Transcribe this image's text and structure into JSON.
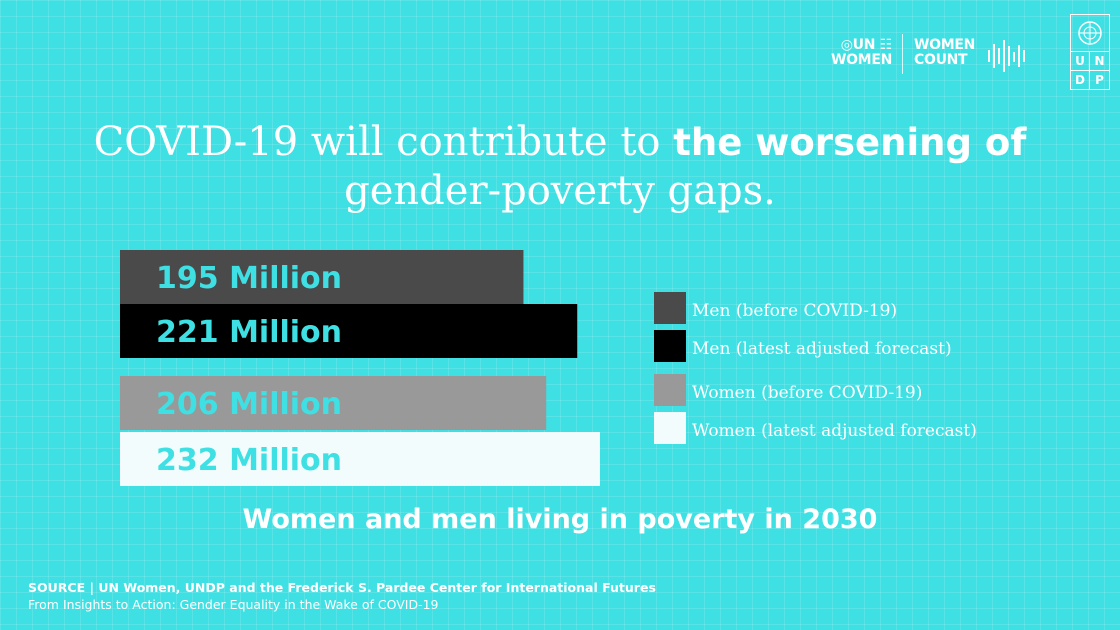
{
  "logos": {
    "un_women_line1": "UN",
    "un_women_line2": "WOMEN",
    "women_count_line1": "WOMEN",
    "women_count_line2": "COUNT",
    "undp_letters": [
      "U",
      "N",
      "D",
      "P"
    ]
  },
  "headline": {
    "part1": "COVID-19 will contribute to ",
    "bold": "the worsening of",
    "part2": "gender-poverty gaps."
  },
  "chart_data": {
    "type": "bar",
    "orientation": "horizontal",
    "unit": "Million",
    "title": "Women and men living in poverty in 2030",
    "bars": [
      {
        "series": "Men (before COVID-19)",
        "value": 195,
        "label": "195 Million",
        "color": "#4a4a4a",
        "text_color": "#3fe0e3"
      },
      {
        "series": "Men (latest adjusted forecast)",
        "value": 221,
        "label": "221 Million",
        "color": "#000000",
        "text_color": "#3fe0e3"
      },
      {
        "series": "Women (before COVID-19)",
        "value": 206,
        "label": "206 Million",
        "color": "#999999",
        "text_color": "#3fe0e3"
      },
      {
        "series": "Women (latest adjusted forecast)",
        "value": 232,
        "label": "232 Million",
        "color": "#f2fcfc",
        "text_color": "#3fe0e3"
      }
    ],
    "legend": [
      {
        "label": "Men (before COVID-19)",
        "color": "#4a4a4a"
      },
      {
        "label": "Men (latest adjusted forecast)",
        "color": "#000000"
      },
      {
        "label": "Women (before COVID-19)",
        "color": "#999999"
      },
      {
        "label": "Women (latest adjusted forecast)",
        "color": "#f2fcfc"
      }
    ],
    "legend_position": "right"
  },
  "source": {
    "line1": "SOURCE | UN Women, UNDP and the Frederick S. Pardee Center for International Futures",
    "line2": "From Insights to Action: Gender Equality in the Wake of COVID-19"
  }
}
